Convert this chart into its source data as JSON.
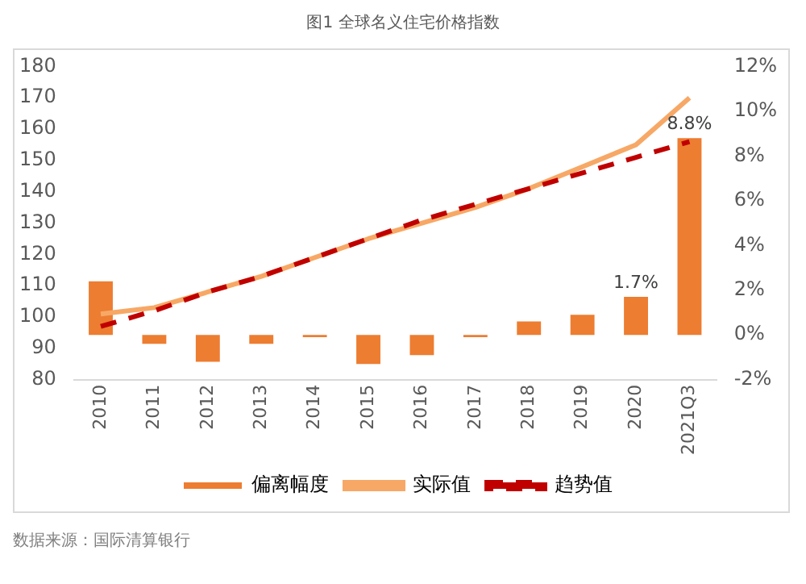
{
  "chart_data": {
    "type": "bar",
    "title": "图1 全球名义住宅价格指数",
    "categories": [
      "2010",
      "2011",
      "2012",
      "2013",
      "2014",
      "2015",
      "2016",
      "2017",
      "2018",
      "2019",
      "2020",
      "2021Q3"
    ],
    "series": [
      {
        "name": "偏离幅度",
        "axis": "y2",
        "color": "#ed7d31",
        "values": [
          2.4,
          -0.4,
          -1.2,
          -0.4,
          -0.1,
          -1.3,
          -0.9,
          -0.1,
          0.6,
          0.9,
          1.7,
          8.8
        ],
        "value_labels": [
          null,
          null,
          null,
          null,
          null,
          null,
          null,
          null,
          null,
          null,
          "1.7%",
          "8.8%"
        ]
      },
      {
        "name": "实际值",
        "type": "line",
        "color": "#f7a866",
        "line_style": "solid",
        "values": [
          101,
          103,
          108,
          113,
          119,
          125,
          130,
          135,
          141,
          148,
          155,
          170
        ]
      },
      {
        "name": "趋势值",
        "type": "line",
        "color": "#c00000",
        "line_style": "dashed",
        "values": [
          97,
          102,
          108,
          113,
          119,
          125,
          131,
          136,
          141,
          146,
          151,
          156
        ]
      }
    ],
    "ylim": [
      80,
      180
    ],
    "yticks": [
      80,
      90,
      100,
      110,
      120,
      130,
      140,
      150,
      160,
      170,
      180
    ],
    "y2lim": [
      -2,
      12
    ],
    "y2ticks": [
      {
        "value": -2,
        "label": "-2%"
      },
      {
        "value": 0,
        "label": "0%"
      },
      {
        "value": 2,
        "label": "2%"
      },
      {
        "value": 4,
        "label": "4%"
      },
      {
        "value": 6,
        "label": "6%"
      },
      {
        "value": 8,
        "label": "8%"
      },
      {
        "value": 10,
        "label": "10%"
      },
      {
        "value": 12,
        "label": "12%"
      }
    ],
    "grid": false,
    "legend": "bottom",
    "marker": "none",
    "annotations": [
      "数据来源：国际清算银行"
    ]
  }
}
